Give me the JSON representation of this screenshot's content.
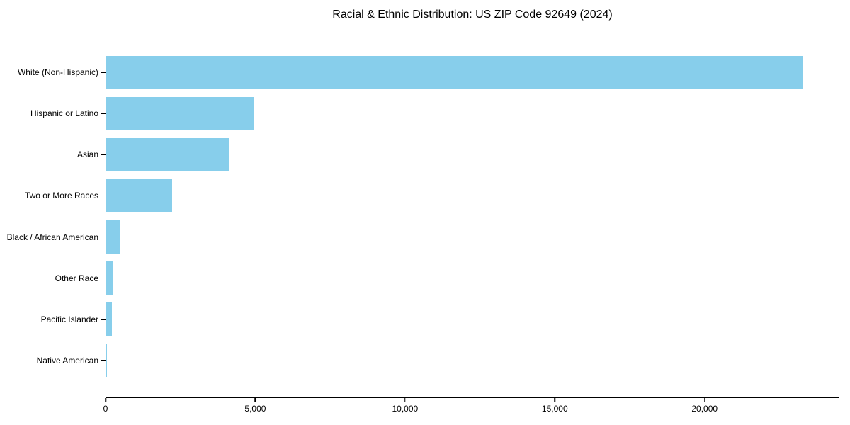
{
  "chart_data": {
    "type": "bar",
    "orientation": "horizontal",
    "title": "Racial & Ethnic Distribution: US ZIP Code 92649 (2024)",
    "categories": [
      "White (Non-Hispanic)",
      "Hispanic or Latino",
      "Asian",
      "Two or More Races",
      "Black / African American",
      "Other Race",
      "Pacific Islander",
      "Native American"
    ],
    "values": [
      23300,
      4950,
      4100,
      2200,
      450,
      210,
      200,
      20
    ],
    "xlabel": "",
    "ylabel": "",
    "xlim": [
      0,
      24500
    ],
    "xticks": [
      0,
      5000,
      10000,
      15000,
      20000
    ],
    "xtick_labels": [
      "0",
      "5,000",
      "10,000",
      "15,000",
      "20,000"
    ],
    "bar_color": "#87ceeb",
    "grid": false,
    "legend": "none",
    "frame": "full-box"
  }
}
